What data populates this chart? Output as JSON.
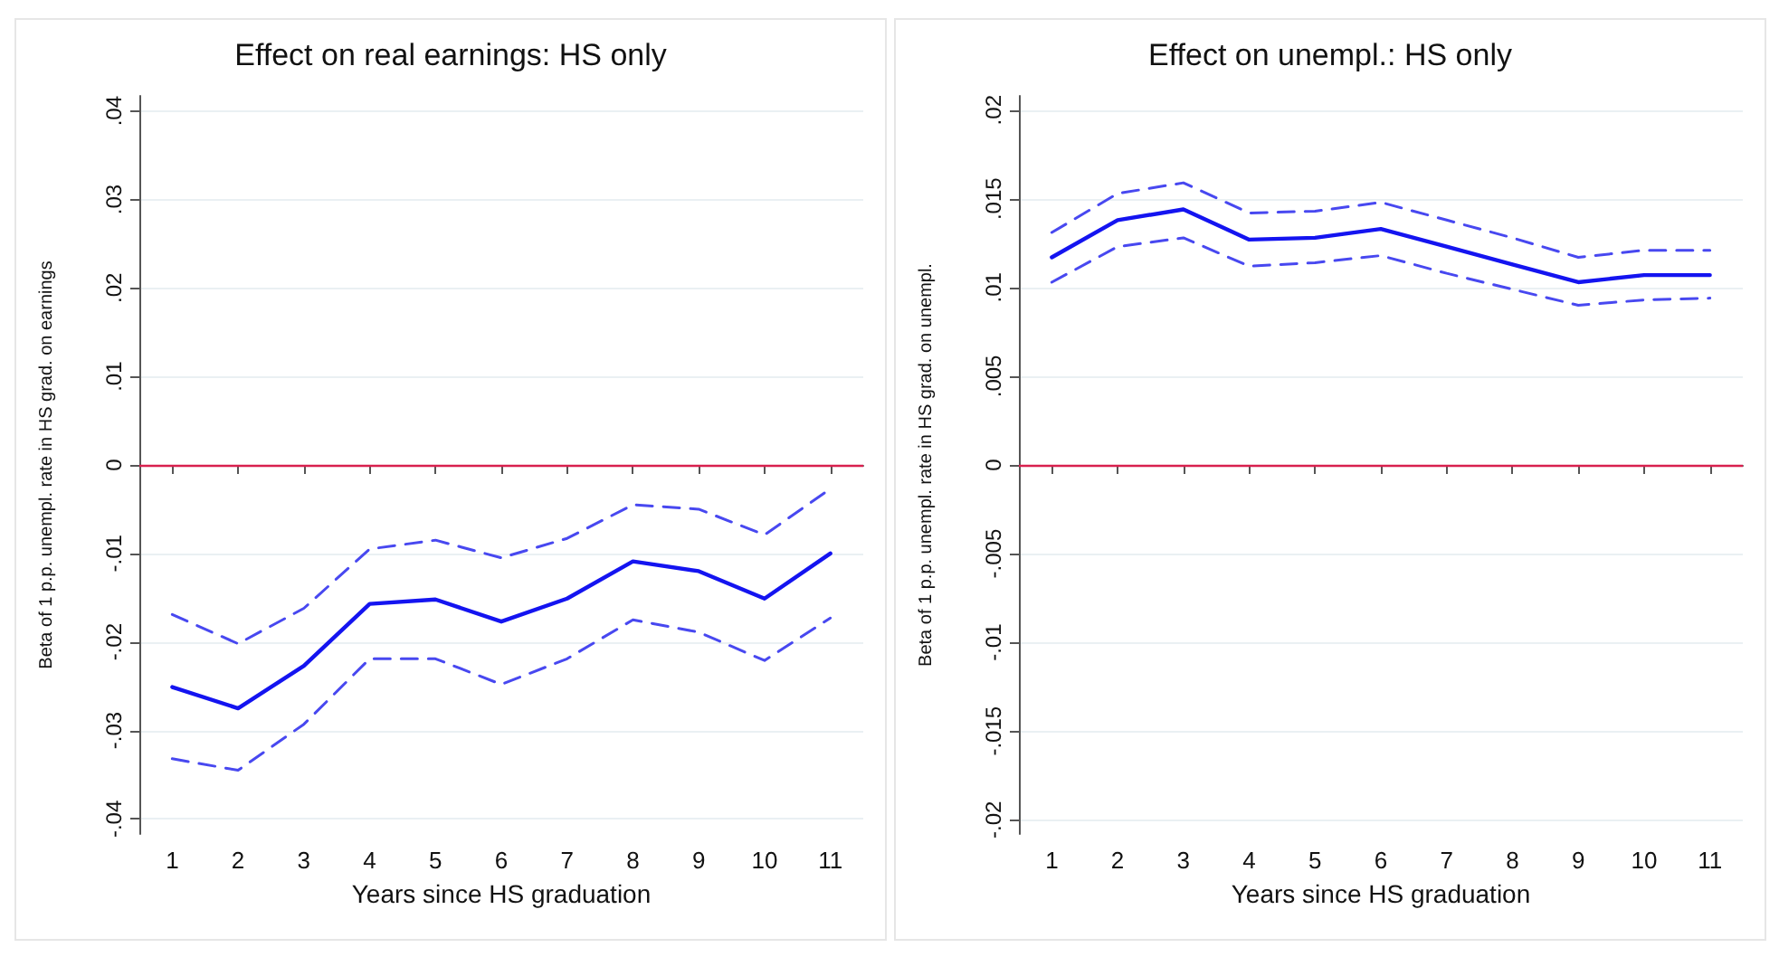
{
  "chart_data": [
    {
      "type": "line",
      "title": "Effect on real earnings: HS only",
      "xlabel": "Years since HS graduation",
      "ylabel": "Beta of 1 p.p. unempl. rate in HS grad. on earnings",
      "categories": [
        "1",
        "2",
        "3",
        "4",
        "5",
        "6",
        "7",
        "8",
        "9",
        "10",
        "11"
      ],
      "series": [
        {
          "color": "#1414f0",
          "line_style": "solid",
          "values": [
            -0.0251,
            -0.0275,
            -0.0227,
            -0.0157,
            -0.0152,
            -0.0177,
            -0.0151,
            -0.0109,
            -0.012,
            -0.0151,
            -0.01
          ]
        },
        {
          "color": "#4848f0",
          "line_style": "dashed",
          "values": [
            -0.0169,
            -0.0202,
            -0.0162,
            -0.0095,
            -0.0085,
            -0.0105,
            -0.0083,
            -0.0045,
            -0.005,
            -0.0079,
            -0.0027
          ]
        },
        {
          "color": "#4848f0",
          "line_style": "dashed",
          "values": [
            -0.0332,
            -0.0345,
            -0.0293,
            -0.0219,
            -0.0219,
            -0.0248,
            -0.0219,
            -0.0175,
            -0.0189,
            -0.0221,
            -0.0173
          ]
        }
      ],
      "ylim": [
        -0.0417,
        0.0417
      ],
      "yticks": [
        {
          "value": -0.04,
          "label": "-.04"
        },
        {
          "value": -0.03,
          "label": "-.03"
        },
        {
          "value": -0.02,
          "label": "-.02"
        },
        {
          "value": -0.01,
          "label": "-.01"
        },
        0,
        {
          "value": 0.01,
          "label": ".01"
        },
        {
          "value": 0.02,
          "label": ".02"
        },
        {
          "value": 0.03,
          "label": ".03"
        },
        {
          "value": 0.04,
          "label": ".04"
        }
      ],
      "ref_lines": [
        {
          "axis": "y",
          "value": 0,
          "color": "#d8204e"
        }
      ],
      "grid": "y",
      "marker": "none"
    },
    {
      "type": "line",
      "title": "Effect on unempl.: HS only",
      "xlabel": "Years since HS graduation",
      "ylabel": "Beta of 1 p.p. unempl. rate in HS grad. on unempl.",
      "categories": [
        "1",
        "2",
        "3",
        "4",
        "5",
        "6",
        "7",
        "8",
        "9",
        "10",
        "11"
      ],
      "series": [
        {
          "color": "#1414f0",
          "line_style": "solid",
          "values": [
            0.0117,
            0.0138,
            0.0144,
            0.0127,
            0.0128,
            0.0133,
            0.0123,
            0.0113,
            0.0103,
            0.0107,
            0.0107
          ]
        },
        {
          "color": "#4848f0",
          "line_style": "dashed",
          "values": [
            0.0131,
            0.0153,
            0.0159,
            0.0142,
            0.0143,
            0.0148,
            0.0138,
            0.0128,
            0.0117,
            0.0121,
            0.0121
          ]
        },
        {
          "color": "#4848f0",
          "line_style": "dashed",
          "values": [
            0.0103,
            0.0123,
            0.0128,
            0.0112,
            0.0114,
            0.0118,
            0.0108,
            0.0099,
            0.009,
            0.0093,
            0.0094
          ]
        }
      ],
      "ylim": [
        -0.0208,
        0.0208
      ],
      "yticks": [
        {
          "value": -0.02,
          "label": "-.02"
        },
        {
          "value": -0.015,
          "label": "-.015"
        },
        {
          "value": -0.01,
          "label": "-.01"
        },
        {
          "value": -0.005,
          "label": "-.005"
        },
        0,
        {
          "value": 0.005,
          "label": ".005"
        },
        {
          "value": 0.01,
          "label": ".01"
        },
        {
          "value": 0.015,
          "label": ".015"
        },
        {
          "value": 0.02,
          "label": ".02"
        }
      ],
      "ref_lines": [
        {
          "axis": "y",
          "value": 0,
          "color": "#d8204e"
        }
      ],
      "grid": "y",
      "marker": "none"
    }
  ]
}
